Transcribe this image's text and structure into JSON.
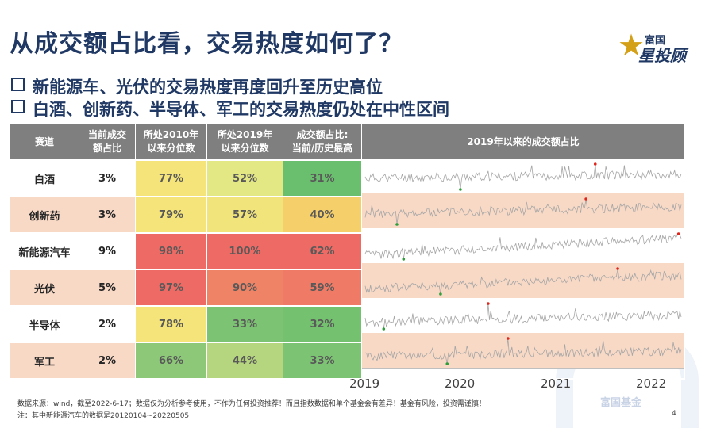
{
  "title": "从成交额占比看，交易热度如何了？",
  "logo": {
    "line1": "富国",
    "line2": "星投顾"
  },
  "bullets": [
    "新能源车、光伏的交易热度再度回升至历史高位",
    "白酒、创新药、半导体、军工的交易热度仍处在中性区间"
  ],
  "table": {
    "headers": {
      "sector": "赛道",
      "share_l1": "当前成交",
      "share_l2": "额占比",
      "pct2010_l1": "所处2010年",
      "pct2010_l2": "以来分位数",
      "pct2019_l1": "所处2019年",
      "pct2019_l2": "以来分位数",
      "ratio_l1": "成交额占比:",
      "ratio_l2": "当前/历史最高",
      "chart": "2019年以来的成交额占比"
    },
    "rows": [
      {
        "name": "白酒",
        "share": "3%",
        "pct2010": "77%",
        "pct2019": "52%",
        "ratio": "31%",
        "c2010": "#f5e47a",
        "c2019": "#e3e885",
        "cratio": "#6abf6e"
      },
      {
        "name": "创新药",
        "share": "3%",
        "pct2010": "79%",
        "pct2019": "57%",
        "ratio": "40%",
        "c2010": "#f5e47a",
        "c2019": "#f0e47a",
        "cratio": "#f5cf69"
      },
      {
        "name": "新能源汽车",
        "share": "9%",
        "pct2010": "98%",
        "pct2019": "100%",
        "ratio": "62%",
        "c2010": "#ed6b64",
        "c2019": "#ed6b64",
        "cratio": "#ed6b64"
      },
      {
        "name": "光伏",
        "share": "5%",
        "pct2010": "97%",
        "pct2019": "90%",
        "ratio": "59%",
        "c2010": "#ed6b64",
        "c2019": "#ef8366",
        "cratio": "#ef7b66"
      },
      {
        "name": "半导体",
        "share": "2%",
        "pct2010": "78%",
        "pct2019": "33%",
        "ratio": "32%",
        "c2010": "#f5e47a",
        "c2019": "#7cc473",
        "cratio": "#74c170"
      },
      {
        "name": "军工",
        "share": "2%",
        "pct2010": "66%",
        "pct2019": "44%",
        "ratio": "33%",
        "c2010": "#8cc878",
        "c2019": "#b5d67e",
        "cratio": "#7cc473"
      }
    ]
  },
  "chart_data": {
    "type": "line",
    "title": "2019年以来的成交额占比",
    "x_ticks": [
      "2019",
      "2020",
      "2021",
      "2022"
    ],
    "series": [
      {
        "name": "白酒",
        "seed": 11,
        "base": 0.45,
        "trend": 0.15,
        "peak_at": 0.73,
        "min_at": 0.3
      },
      {
        "name": "创新药",
        "seed": 23,
        "base": 0.4,
        "trend": 0.3,
        "peak_at": 0.7,
        "min_at": 0.1
      },
      {
        "name": "新能源汽车",
        "seed": 37,
        "base": 0.15,
        "trend": 0.7,
        "peak_at": 0.99,
        "min_at": 0.12
      },
      {
        "name": "光伏",
        "seed": 41,
        "base": 0.2,
        "trend": 0.55,
        "peak_at": 0.8,
        "min_at": 0.24
      },
      {
        "name": "半导体",
        "seed": 53,
        "base": 0.25,
        "trend": 0.3,
        "peak_at": 0.39,
        "min_at": 0.06
      },
      {
        "name": "军工",
        "seed": 67,
        "base": 0.3,
        "trend": 0.2,
        "peak_at": 0.45,
        "min_at": 0.26
      }
    ],
    "colors": {
      "line": "#a6a6a6",
      "max_marker": "#e0241b",
      "min_marker": "#2e9e3a"
    }
  },
  "footer": {
    "source": "数据来源：wind，截至2022-6-17；数据仅为分析参考使用，不作为任何投资推荐！而且指数数据和单个基金会有差异！基金有风险，投资需谨慎！",
    "note": "注：其中新能源汽车的数据是20120104~20220505",
    "page": "4",
    "watermark": "富国基金"
  }
}
